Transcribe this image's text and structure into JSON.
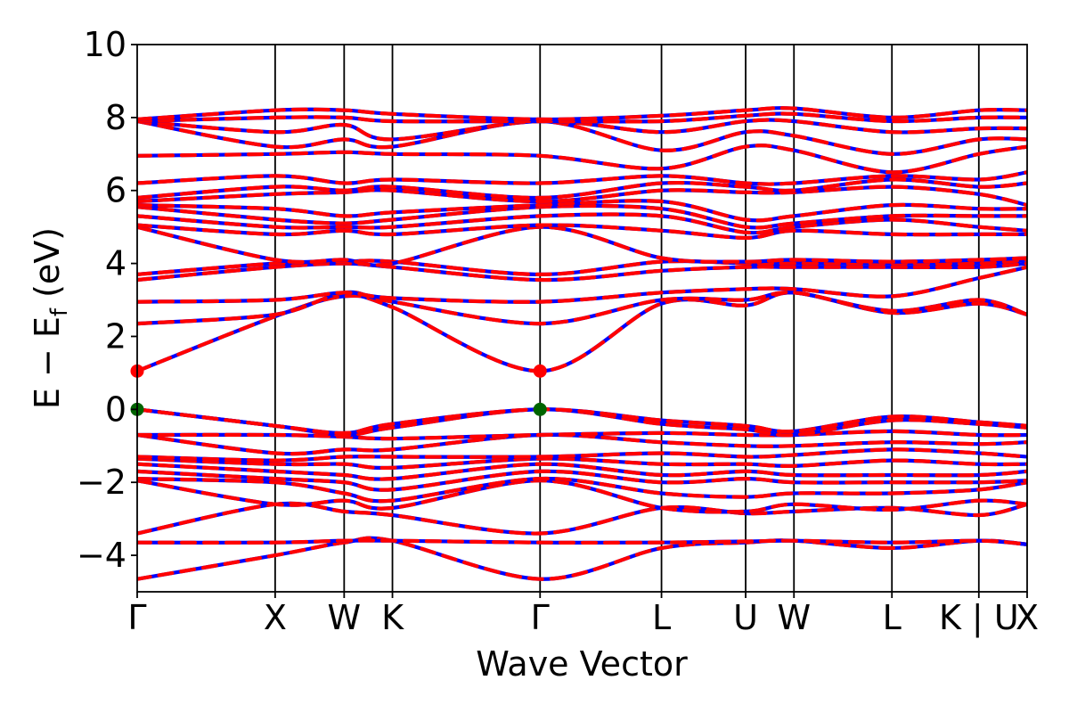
{
  "chart_data": {
    "type": "line",
    "title": "",
    "xlabel": "Wave Vector",
    "ylabel_parts": {
      "lead": "E − E",
      "sub": "f",
      "tail": " (eV)"
    },
    "ylim": [
      -5,
      10
    ],
    "y_ticks": [
      -4,
      -2,
      0,
      2,
      4,
      6,
      8,
      10
    ],
    "y_tick_labels": [
      "−4",
      "−2",
      "0",
      "2",
      "4",
      "6",
      "8",
      "10"
    ],
    "x_range": [
      0,
      6.45
    ],
    "kpoints": [
      {
        "label": "Γ",
        "x": 0.0
      },
      {
        "label": "X",
        "x": 1.0
      },
      {
        "label": "W",
        "x": 1.5
      },
      {
        "label": "K",
        "x": 1.85
      },
      {
        "label": "Γ",
        "x": 2.92
      },
      {
        "label": "L",
        "x": 3.8
      },
      {
        "label": "U",
        "x": 4.41
      },
      {
        "label": "W",
        "x": 4.76
      },
      {
        "label": "L",
        "x": 5.47
      },
      {
        "label": "K | U",
        "x": 6.1
      },
      {
        "label": "X",
        "x": 6.45
      }
    ],
    "band_extrema": {
      "vbm": {
        "x": [
          0.0,
          2.92
        ],
        "energy": 0.0,
        "color": "#006400"
      },
      "cbm": {
        "x": [
          0.0,
          2.92
        ],
        "energy": 1.05,
        "color": "#ff0000"
      }
    },
    "series": [
      {
        "color": "#ff0000",
        "values": [
          [
            -4.65,
            -4.0,
            -3.65,
            -3.6,
            -4.65,
            -3.8,
            -3.65,
            -3.6,
            -3.8,
            -3.6,
            -3.7
          ],
          [
            -3.65,
            -3.65,
            -3.6,
            -3.6,
            -3.65,
            -3.65,
            -3.62,
            -3.6,
            -3.65,
            -3.6,
            -3.7
          ],
          [
            -3.4,
            -2.6,
            -2.8,
            -2.9,
            -3.4,
            -2.7,
            -2.85,
            -2.8,
            -2.7,
            -2.9,
            -2.6
          ],
          [
            -1.95,
            -2.6,
            -2.5,
            -2.7,
            -1.95,
            -2.7,
            -2.8,
            -2.6,
            -2.75,
            -2.5,
            -2.6
          ],
          [
            -1.9,
            -2.0,
            -2.3,
            -2.5,
            -1.9,
            -2.3,
            -2.4,
            -2.3,
            -2.3,
            -2.2,
            -2.0
          ],
          [
            -1.7,
            -1.9,
            -2.0,
            -2.2,
            -1.7,
            -2.0,
            -1.9,
            -2.0,
            -2.0,
            -2.0,
            -1.95
          ],
          [
            -1.5,
            -1.7,
            -1.8,
            -1.9,
            -1.5,
            -1.8,
            -1.7,
            -1.8,
            -1.8,
            -1.8,
            -1.7
          ],
          [
            -1.35,
            -1.5,
            -1.5,
            -1.6,
            -1.35,
            -1.5,
            -1.5,
            -1.55,
            -1.4,
            -1.5,
            -1.5
          ],
          [
            -1.3,
            -1.4,
            -1.3,
            -1.3,
            -1.3,
            -1.2,
            -1.3,
            -1.25,
            -1.1,
            -1.2,
            -1.3
          ],
          [
            -0.7,
            -1.2,
            -1.1,
            -1.1,
            -0.7,
            -0.9,
            -1.0,
            -1.0,
            -0.9,
            -0.95,
            -0.9
          ],
          [
            -0.7,
            -0.7,
            -0.75,
            -0.8,
            -0.7,
            -0.65,
            -0.7,
            -0.7,
            -0.6,
            -0.7,
            -0.7
          ],
          [
            0.0,
            -0.45,
            -0.7,
            -0.5,
            0.0,
            -0.4,
            -0.55,
            -0.7,
            -0.3,
            -0.4,
            -0.5
          ],
          [
            0.0,
            -0.45,
            -0.65,
            -0.4,
            0.0,
            -0.3,
            -0.45,
            -0.6,
            -0.2,
            -0.35,
            -0.45
          ],
          [
            1.05,
            2.55,
            3.1,
            2.8,
            1.05,
            2.9,
            2.85,
            3.2,
            2.65,
            2.9,
            2.6
          ],
          [
            2.35,
            2.6,
            3.2,
            2.95,
            2.35,
            3.0,
            3.0,
            3.2,
            2.7,
            3.0,
            2.6
          ],
          [
            2.95,
            3.0,
            3.2,
            3.05,
            2.95,
            3.2,
            3.3,
            3.3,
            3.1,
            3.6,
            3.9
          ],
          [
            3.55,
            3.9,
            4.0,
            3.9,
            3.55,
            3.8,
            3.9,
            3.9,
            3.9,
            3.9,
            4.0
          ],
          [
            3.7,
            4.0,
            4.05,
            4.05,
            3.7,
            4.05,
            4.0,
            4.0,
            4.0,
            4.0,
            4.1
          ],
          [
            5.0,
            4.1,
            4.1,
            4.0,
            5.0,
            4.15,
            4.05,
            4.1,
            4.05,
            4.1,
            4.15
          ],
          [
            5.05,
            4.8,
            4.9,
            4.8,
            5.05,
            4.9,
            4.7,
            4.9,
            4.8,
            4.8,
            4.8
          ],
          [
            5.3,
            5.0,
            5.0,
            5.0,
            5.3,
            5.3,
            4.85,
            5.0,
            5.2,
            5.0,
            4.9
          ],
          [
            5.55,
            5.2,
            5.1,
            5.2,
            5.55,
            5.5,
            5.0,
            5.1,
            5.3,
            5.3,
            5.3
          ],
          [
            5.6,
            5.5,
            5.3,
            5.4,
            5.6,
            5.7,
            5.2,
            5.3,
            5.6,
            5.5,
            5.5
          ],
          [
            5.7,
            5.9,
            5.95,
            6.0,
            5.7,
            6.0,
            5.95,
            5.95,
            6.1,
            5.9,
            5.6
          ],
          [
            5.8,
            6.1,
            6.0,
            6.1,
            5.8,
            6.2,
            6.1,
            6.0,
            6.3,
            6.1,
            6.2
          ],
          [
            6.2,
            6.4,
            6.2,
            6.3,
            6.2,
            6.4,
            6.2,
            6.2,
            6.4,
            6.3,
            6.5
          ],
          [
            6.95,
            7.0,
            7.05,
            7.0,
            6.95,
            6.6,
            7.2,
            7.1,
            6.5,
            7.0,
            7.2
          ],
          [
            7.9,
            7.2,
            7.4,
            7.2,
            7.9,
            7.1,
            7.6,
            7.5,
            7.0,
            7.4,
            7.4
          ],
          [
            7.9,
            7.6,
            7.8,
            7.4,
            7.9,
            7.6,
            7.9,
            7.9,
            7.6,
            7.7,
            7.7
          ],
          [
            7.9,
            8.0,
            8.0,
            7.9,
            7.9,
            7.9,
            8.05,
            8.1,
            7.9,
            8.0,
            8.0
          ],
          [
            7.95,
            8.2,
            8.2,
            8.1,
            7.95,
            8.05,
            8.2,
            8.25,
            8.0,
            8.2,
            8.2
          ]
        ]
      }
    ]
  }
}
